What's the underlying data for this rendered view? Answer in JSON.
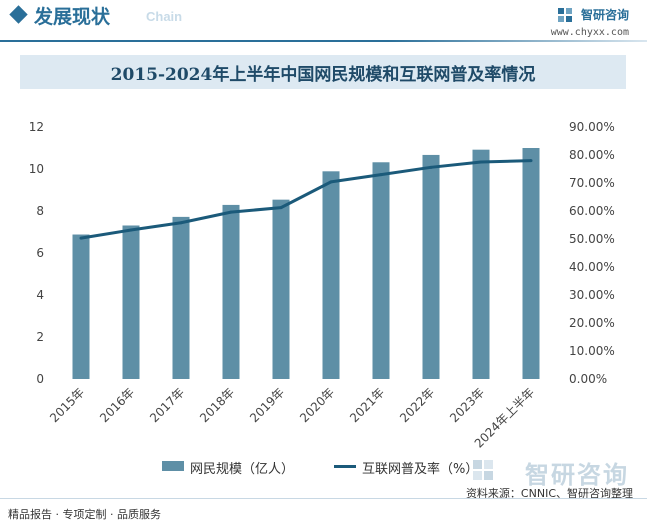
{
  "header": {
    "section_title": "发展现状",
    "section_sub": "Chain",
    "brand_name": "智研咨询",
    "brand_url": "www.chyxx.com"
  },
  "chart_data": {
    "type": "bar",
    "title": "2015-2024年上半年中国网民规模和互联网普及率情况",
    "categories": [
      "2015年",
      "2016年",
      "2017年",
      "2018年",
      "2019年",
      "2020年",
      "2021年",
      "2022年",
      "2023年",
      "2024年上半年"
    ],
    "series": [
      {
        "name": "网民规模（亿人）",
        "type": "bar",
        "axis": "left",
        "color": "#5e8fa6",
        "values": [
          6.88,
          7.31,
          7.72,
          8.29,
          8.54,
          9.89,
          10.32,
          10.67,
          10.92,
          11.0
        ]
      },
      {
        "name": "互联网普及率（%）",
        "type": "line",
        "axis": "right",
        "color": "#1b5a7a",
        "values": [
          50.3,
          53.2,
          55.8,
          59.6,
          61.2,
          70.4,
          73.0,
          75.6,
          77.5,
          78.0
        ]
      }
    ],
    "y_left": {
      "min": 0,
      "max": 12,
      "ticks": [
        "0",
        "2",
        "4",
        "6",
        "8",
        "10",
        "12"
      ]
    },
    "y_right": {
      "min": 0,
      "max": 90,
      "ticks": [
        "0.00%",
        "10.00%",
        "20.00%",
        "30.00%",
        "40.00%",
        "50.00%",
        "60.00%",
        "70.00%",
        "80.00%",
        "90.00%"
      ]
    },
    "grid": false,
    "legend_position": "bottom"
  },
  "watermark": "智研咨询",
  "footer": {
    "source": "资料来源：CNNIC、智研咨询整理",
    "left": "精品报告 · 专项定制 · 品质服务"
  }
}
